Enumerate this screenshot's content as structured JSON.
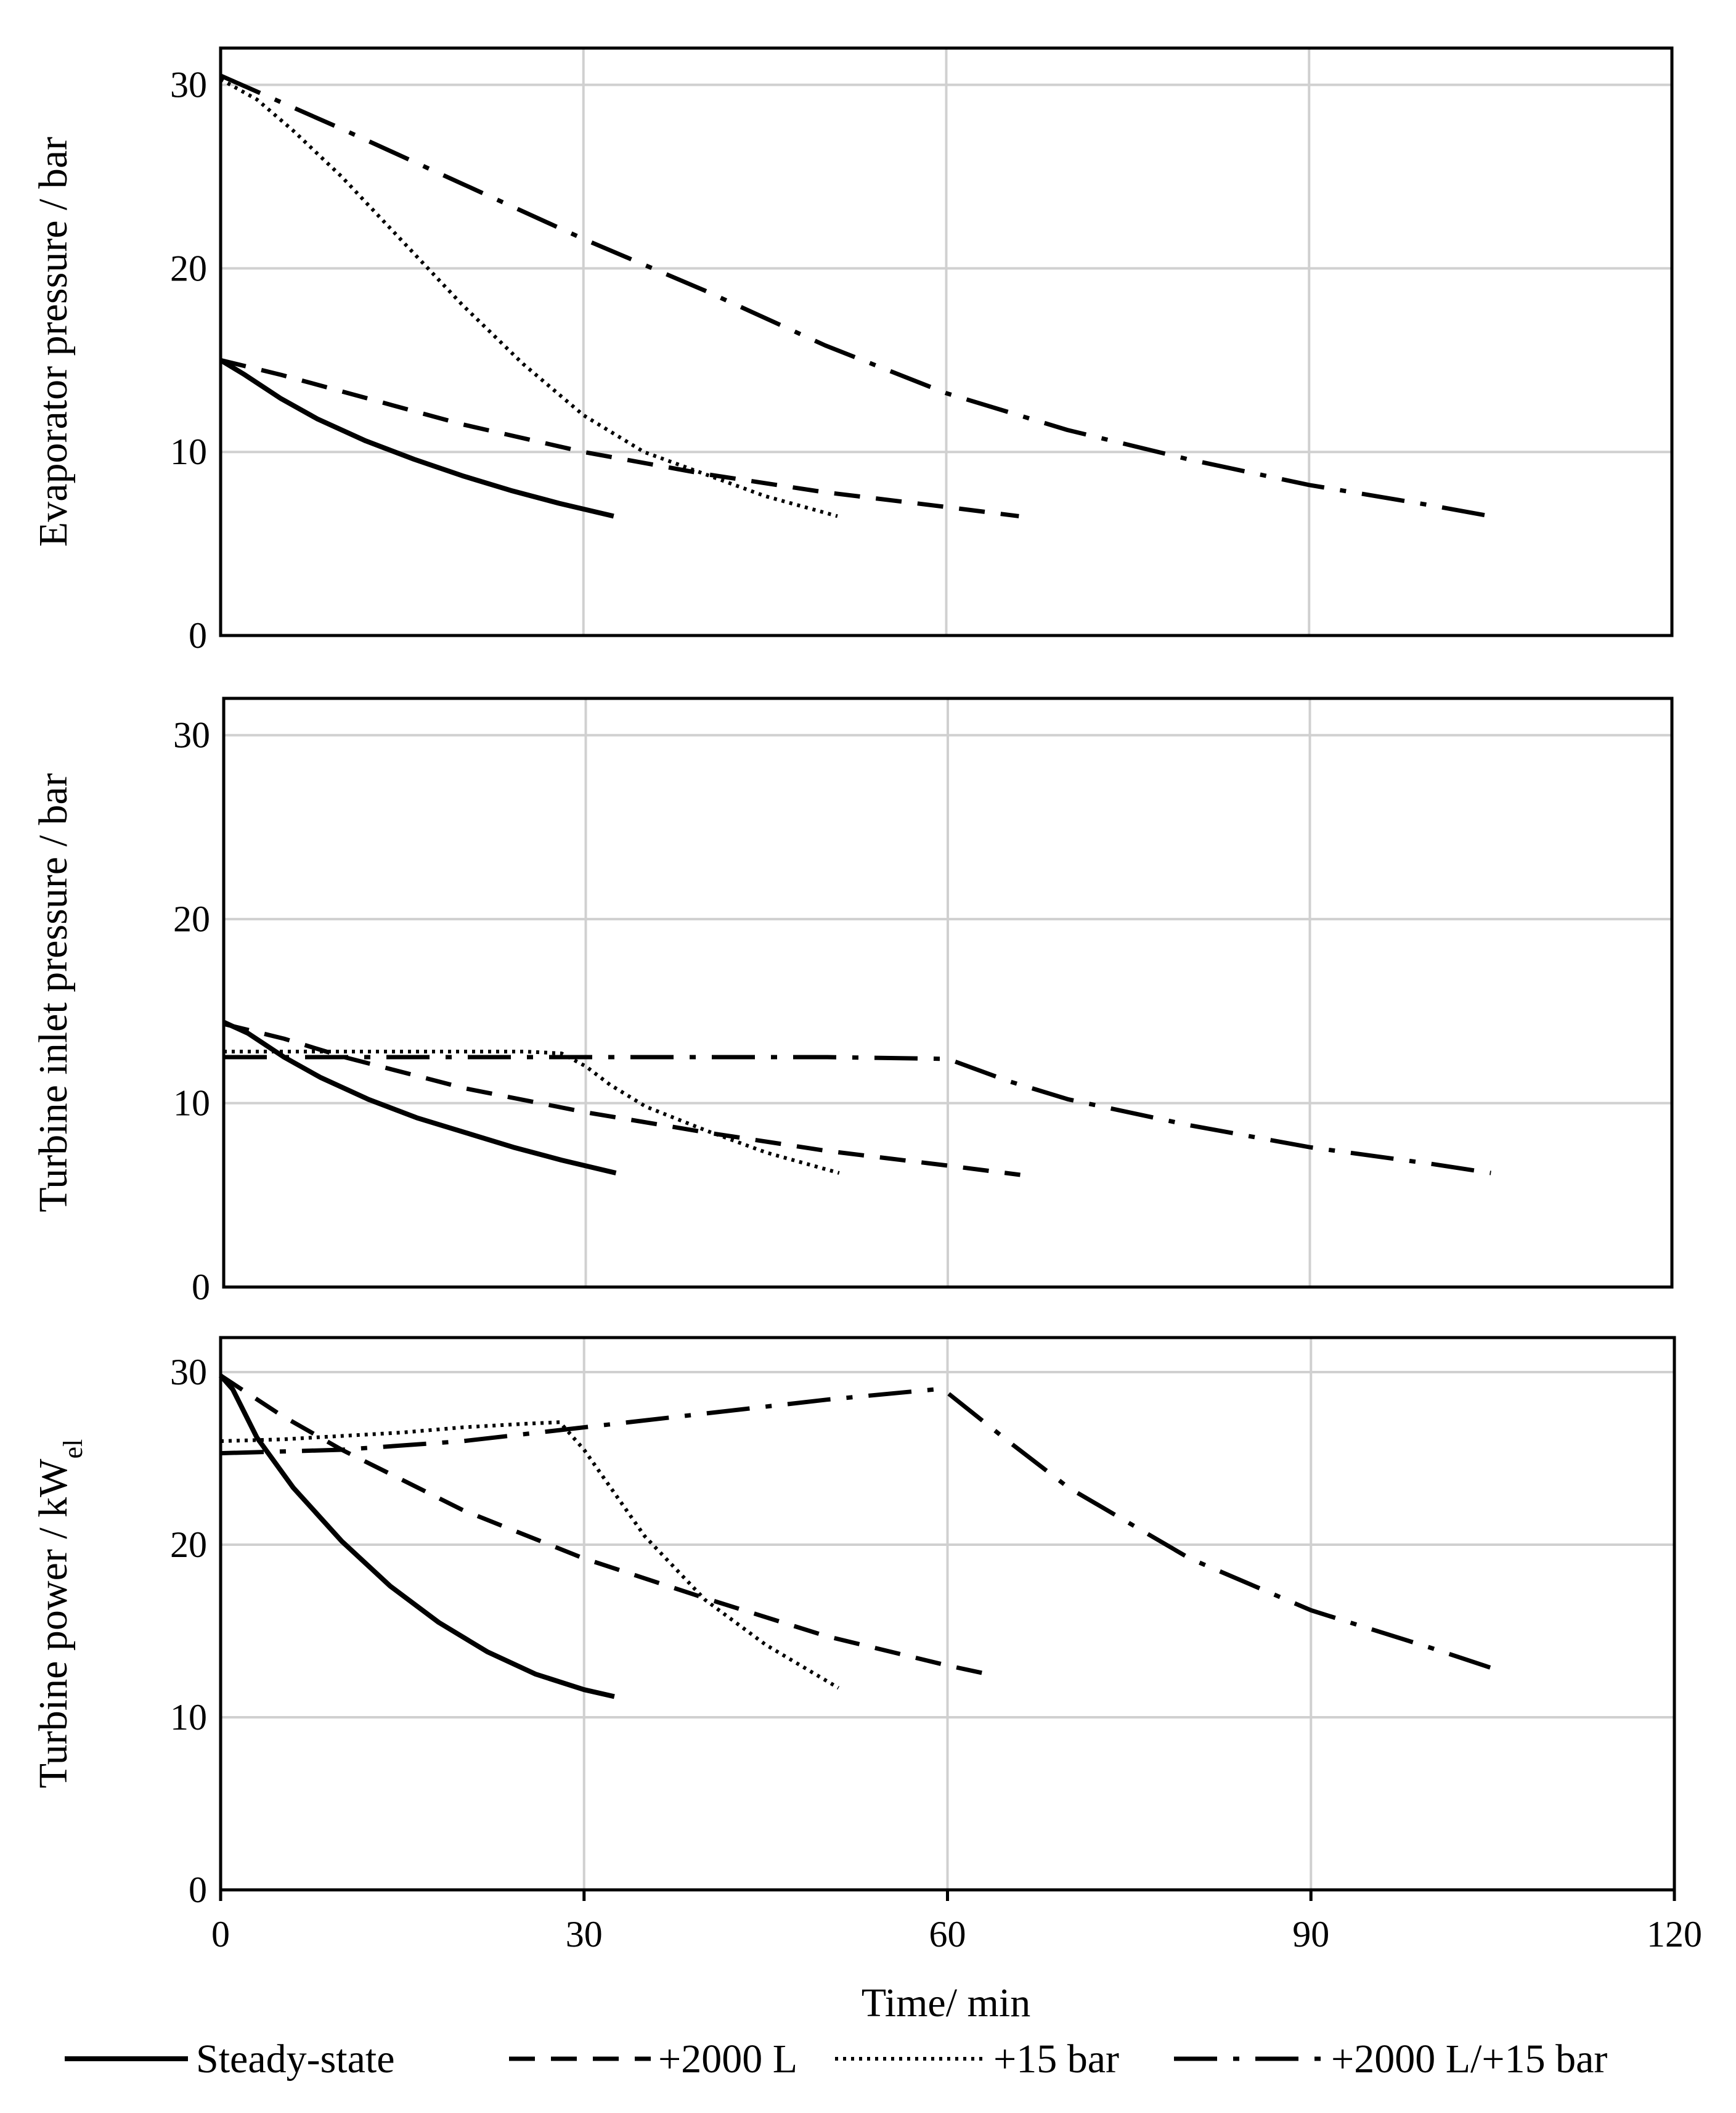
{
  "chart_data": [
    {
      "type": "line",
      "ylabel": "Evaporator pressure / bar",
      "xlim": [
        0,
        120
      ],
      "ylim": [
        0,
        32
      ],
      "xticks": [
        0,
        30,
        60,
        90,
        120
      ],
      "yticks": [
        0,
        10,
        20,
        30
      ],
      "xtick_labels": [
        "0",
        "30",
        "60",
        "90",
        "120"
      ],
      "ytick_labels": [
        "0",
        "10",
        "20",
        "30"
      ],
      "grid": true,
      "series": [
        {
          "name": "Steady-state",
          "x": [
            0,
            2,
            5,
            8,
            12,
            16,
            20,
            24,
            28,
            32.5
          ],
          "y": [
            15,
            14.2,
            12.9,
            11.8,
            10.6,
            9.6,
            8.7,
            7.9,
            7.2,
            6.5
          ]
        },
        {
          "name": "+2000 L",
          "x": [
            0,
            5,
            10,
            20,
            30,
            40,
            50,
            60,
            66
          ],
          "y": [
            15,
            14.2,
            13.3,
            11.5,
            10.0,
            8.8,
            7.8,
            7.0,
            6.5
          ]
        },
        {
          "name": "+15 bar",
          "x": [
            0,
            3,
            6,
            10,
            15,
            20,
            25,
            30,
            35,
            40,
            45,
            51
          ],
          "y": [
            30.3,
            29.2,
            27.5,
            25.0,
            21.5,
            18.0,
            14.8,
            12.0,
            10.0,
            8.8,
            7.6,
            6.5
          ]
        },
        {
          "name": "+2000 L/+15 bar",
          "x": [
            0,
            10,
            20,
            30,
            40,
            50,
            60,
            70,
            80,
            90,
            100,
            105
          ],
          "y": [
            30.5,
            27.6,
            24.6,
            21.6,
            18.8,
            15.8,
            13.2,
            11.2,
            9.6,
            8.2,
            7.1,
            6.5
          ]
        }
      ]
    },
    {
      "type": "line",
      "ylabel": "Turbine inlet pressure / bar",
      "xlim": [
        0,
        120
      ],
      "ylim": [
        0,
        32
      ],
      "xticks": [
        0,
        30,
        60,
        90,
        120
      ],
      "yticks": [
        0,
        10,
        20,
        30
      ],
      "xtick_labels": [
        "0",
        "30",
        "60",
        "90",
        "120"
      ],
      "ytick_labels": [
        "0",
        "10",
        "20",
        "30"
      ],
      "grid": true,
      "series": [
        {
          "name": "Steady-state",
          "x": [
            0,
            2,
            5,
            8,
            12,
            16,
            20,
            24,
            28,
            32.5
          ],
          "y": [
            14.4,
            13.8,
            12.5,
            11.4,
            10.2,
            9.2,
            8.4,
            7.6,
            6.9,
            6.2
          ]
        },
        {
          "name": "+2000 L",
          "x": [
            0,
            5,
            10,
            20,
            30,
            40,
            50,
            60,
            66
          ],
          "y": [
            14.3,
            13.5,
            12.5,
            10.8,
            9.5,
            8.4,
            7.4,
            6.6,
            6.1
          ]
        },
        {
          "name": "+15 bar",
          "x": [
            0,
            5,
            10,
            15,
            20,
            25,
            28,
            30,
            32,
            35,
            40,
            45,
            51
          ],
          "y": [
            12.8,
            12.8,
            12.8,
            12.8,
            12.8,
            12.8,
            12.7,
            12.0,
            11.0,
            9.8,
            8.5,
            7.3,
            6.2
          ]
        },
        {
          "name": "+2000 L/+15 bar",
          "x": [
            0,
            10,
            20,
            30,
            40,
            50,
            60,
            65,
            70,
            80,
            90,
            100,
            105
          ],
          "y": [
            12.5,
            12.5,
            12.5,
            12.5,
            12.5,
            12.5,
            12.4,
            11.2,
            10.2,
            8.8,
            7.6,
            6.7,
            6.2
          ]
        }
      ]
    },
    {
      "type": "line",
      "ylabel": "Turbine power / kW",
      "ylabel_subscript": "el",
      "xlabel": "Time/ min",
      "xlim": [
        0,
        120
      ],
      "ylim": [
        0,
        32
      ],
      "xticks": [
        0,
        30,
        60,
        90,
        120
      ],
      "yticks": [
        0,
        10,
        20,
        30
      ],
      "xtick_labels": [
        "0",
        "30",
        "60",
        "90",
        "120"
      ],
      "ytick_labels": [
        "0",
        "10",
        "20",
        "30"
      ],
      "grid": true,
      "series": [
        {
          "name": "Steady-state",
          "x": [
            0,
            1,
            3,
            6,
            10,
            14,
            18,
            22,
            26,
            30,
            32.5
          ],
          "y": [
            29.8,
            29.0,
            26.2,
            23.3,
            20.2,
            17.6,
            15.5,
            13.8,
            12.5,
            11.6,
            11.2
          ]
        },
        {
          "name": "+2000 L",
          "x": [
            0,
            5,
            10,
            20,
            30,
            40,
            50,
            60,
            64
          ],
          "y": [
            29.8,
            27.5,
            25.5,
            22.0,
            19.2,
            16.9,
            14.7,
            13.0,
            12.4
          ]
        },
        {
          "name": "+15 bar",
          "x": [
            0,
            5,
            10,
            15,
            20,
            25,
            28,
            30,
            35,
            40,
            45,
            51
          ],
          "y": [
            26.0,
            26.1,
            26.3,
            26.5,
            26.8,
            27.0,
            27.1,
            25.5,
            20.5,
            16.8,
            14.2,
            11.7
          ]
        },
        {
          "name": "+2000 L/+15 bar",
          "x": [
            0,
            10,
            20,
            30,
            40,
            50,
            59,
            60,
            65,
            70,
            80,
            90,
            100,
            106
          ],
          "y": [
            25.3,
            25.5,
            26.0,
            26.8,
            27.6,
            28.4,
            29.0,
            28.8,
            26.0,
            23.3,
            19.2,
            16.2,
            14.0,
            12.6
          ]
        }
      ]
    }
  ],
  "legend": {
    "position": "bottom",
    "entries": [
      "Steady-state",
      "+2000 L",
      "+15 bar",
      "+2000 L/+15 bar"
    ]
  },
  "styles": {
    "line_color": "#000000",
    "grid_color": "#d0d0d0"
  }
}
